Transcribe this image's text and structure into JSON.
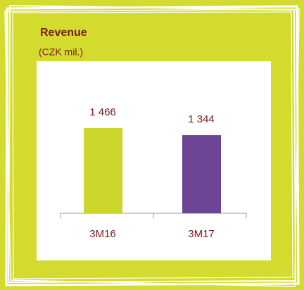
{
  "chart_data": {
    "type": "bar",
    "title": "Revenue",
    "subtitle": "(CZK mil.)",
    "categories": [
      "3M16",
      "3M17"
    ],
    "values": [
      1466,
      1344
    ],
    "value_labels": [
      "1 466",
      "1 344"
    ],
    "colors": [
      "#ccd62c",
      "#6c4595"
    ]
  }
}
